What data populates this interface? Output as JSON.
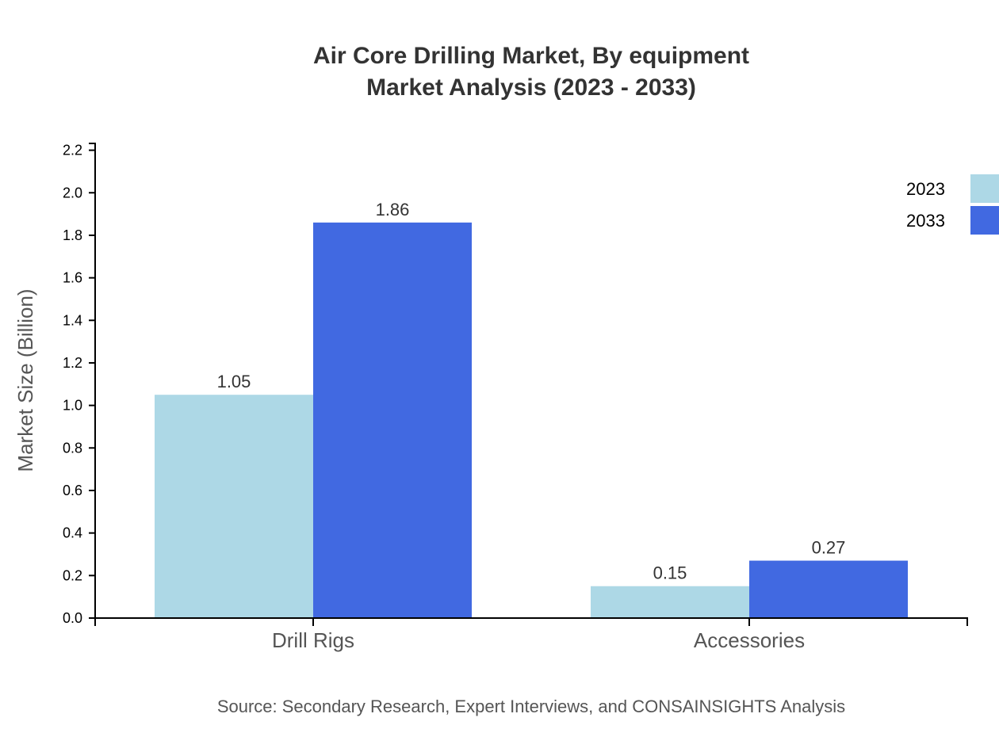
{
  "chart_data": {
    "type": "bar",
    "title": "Air Core Drilling Market, By equipment",
    "subtitle": "Market Analysis (2023 - 2033)",
    "xlabel": "",
    "ylabel": "Market Size (Billion)",
    "categories": [
      "Drill Rigs",
      "Accessories"
    ],
    "series": [
      {
        "name": "2023",
        "color": "#add8e6",
        "values": [
          1.05,
          0.15
        ]
      },
      {
        "name": "2033",
        "color": "#4169e1",
        "values": [
          1.86,
          0.27
        ]
      }
    ],
    "ylim": [
      0,
      2.232
    ],
    "yticks": [
      "0.0",
      "0.2",
      "0.4",
      "0.6",
      "0.8",
      "1.0",
      "1.2",
      "1.4",
      "1.6",
      "1.8",
      "2.0",
      "2.2"
    ],
    "grid": false,
    "legend_position": "top-right",
    "source": "Source: Secondary Research, Expert Interviews, and CONSAINSIGHTS Analysis"
  }
}
